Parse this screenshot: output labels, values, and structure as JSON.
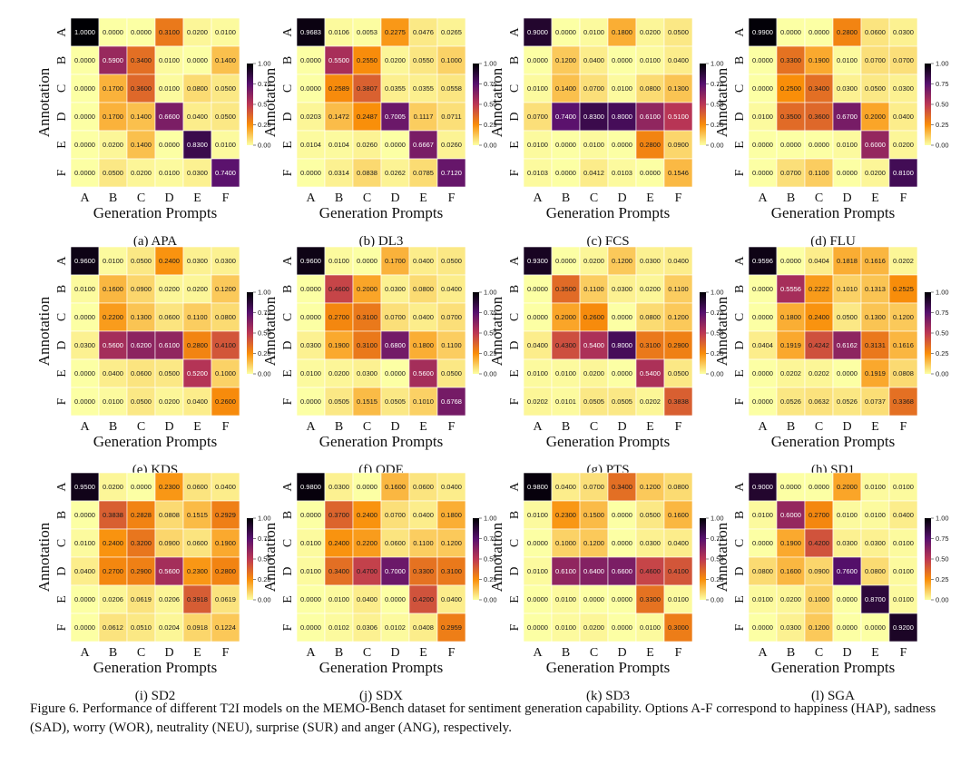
{
  "chart_data": [
    {
      "type": "heatmap",
      "subcaption": "(a) APA",
      "xlabel": "Generation Prompts",
      "ylabel": "Annotation",
      "categories": [
        "A",
        "B",
        "C",
        "D",
        "E",
        "F"
      ],
      "values": [
        [
          "1.0000",
          "0.0000",
          "0.0000",
          "0.3100",
          "0.0200",
          "0.0100"
        ],
        [
          "0.0000",
          "0.5900",
          "0.3400",
          "0.0100",
          "0.0000",
          "0.1400"
        ],
        [
          "0.0000",
          "0.1700",
          "0.3600",
          "0.0100",
          "0.0800",
          "0.0500"
        ],
        [
          "0.0000",
          "0.1700",
          "0.1400",
          "0.6600",
          "0.0400",
          "0.0500"
        ],
        [
          "0.0000",
          "0.0200",
          "0.1400",
          "0.0000",
          "0.8300",
          "0.0100"
        ],
        [
          "0.0000",
          "0.0500",
          "0.0200",
          "0.0100",
          "0.0300",
          "0.7400"
        ]
      ],
      "colorbar": {
        "ticks": [
          "1.00",
          "0.75",
          "0.5",
          "0.25",
          "0.00"
        ],
        "range": [
          0,
          1
        ]
      }
    },
    {
      "type": "heatmap",
      "subcaption": "(b) DL3",
      "xlabel": "Generation Prompts",
      "ylabel": "Annotation",
      "categories": [
        "A",
        "B",
        "C",
        "D",
        "E",
        "F"
      ],
      "values": [
        [
          "0.9683",
          "0.0106",
          "0.0053",
          "0.2275",
          "0.0476",
          "0.0265"
        ],
        [
          "0.0000",
          "0.5500",
          "0.2550",
          "0.0200",
          "0.0550",
          "0.1000"
        ],
        [
          "0.0000",
          "0.2589",
          "0.3807",
          "0.0355",
          "0.0355",
          "0.0558"
        ],
        [
          "0.0203",
          "0.1472",
          "0.2487",
          "0.7005",
          "0.1117",
          "0.0711"
        ],
        [
          "0.0104",
          "0.0104",
          "0.0260",
          "0.0000",
          "0.6667",
          "0.0260"
        ],
        [
          "0.0000",
          "0.0314",
          "0.0838",
          "0.0262",
          "0.0785",
          "0.7120"
        ]
      ],
      "colorbar": {
        "ticks": [
          "1.00",
          "0.75",
          "0.50",
          "0.25",
          "0.00"
        ],
        "range": [
          0,
          1
        ]
      }
    },
    {
      "type": "heatmap",
      "subcaption": "(c) FCS",
      "xlabel": "Generation Prompts",
      "ylabel": "Annotation",
      "categories": [
        "A",
        "B",
        "C",
        "D",
        "E",
        "F"
      ],
      "values": [
        [
          "0.9000",
          "0.0000",
          "0.0100",
          "0.1800",
          "0.0200",
          "0.0500"
        ],
        [
          "0.0000",
          "0.1200",
          "0.0400",
          "0.0000",
          "0.0100",
          "0.0400"
        ],
        [
          "0.0100",
          "0.1400",
          "0.0700",
          "0.0100",
          "0.0800",
          "0.1300"
        ],
        [
          "0.0700",
          "0.7400",
          "0.8300",
          "0.8000",
          "0.6100",
          "0.5100"
        ],
        [
          "0.0100",
          "0.0000",
          "0.0100",
          "0.0000",
          "0.2800",
          "0.0900"
        ],
        [
          "0.0103",
          "0.0000",
          "0.0412",
          "0.0103",
          "0.0000",
          "0.1546"
        ]
      ],
      "colorbar": {
        "ticks": [
          "1.00",
          "0.75",
          "0.50",
          "0.25",
          "0.00"
        ],
        "range": [
          0,
          1
        ]
      }
    },
    {
      "type": "heatmap",
      "subcaption": "(d) FLU",
      "xlabel": "Generation Prompts",
      "ylabel": "Annotation",
      "categories": [
        "A",
        "B",
        "C",
        "D",
        "E",
        "F"
      ],
      "values": [
        [
          "0.9900",
          "0.0000",
          "0.0000",
          "0.2800",
          "0.0600",
          "0.0300"
        ],
        [
          "0.0000",
          "0.3300",
          "0.1900",
          "0.0100",
          "0.0700",
          "0.0700"
        ],
        [
          "0.0000",
          "0.2500",
          "0.3400",
          "0.0300",
          "0.0500",
          "0.0300"
        ],
        [
          "0.0100",
          "0.3500",
          "0.3600",
          "0.6700",
          "0.2000",
          "0.0400"
        ],
        [
          "0.0000",
          "0.0000",
          "0.0000",
          "0.0100",
          "0.6000",
          "0.0200"
        ],
        [
          "0.0000",
          "0.0700",
          "0.1100",
          "0.0000",
          "0.0200",
          "0.8100"
        ]
      ],
      "colorbar": {
        "ticks": [
          "1.00",
          "0.75",
          "0.50",
          "0.25",
          "0.00"
        ],
        "range": [
          0,
          1
        ]
      }
    },
    {
      "type": "heatmap",
      "subcaption": "(e) KDS",
      "xlabel": "Generation Prompts",
      "ylabel": "Annotation",
      "categories": [
        "A",
        "B",
        "C",
        "D",
        "E",
        "F"
      ],
      "values": [
        [
          "0.9600",
          "0.0100",
          "0.0500",
          "0.2400",
          "0.0300",
          "0.0300"
        ],
        [
          "0.0100",
          "0.1600",
          "0.0900",
          "0.0200",
          "0.0200",
          "0.1200"
        ],
        [
          "0.0000",
          "0.2200",
          "0.1300",
          "0.0600",
          "0.1100",
          "0.0800"
        ],
        [
          "0.0300",
          "0.5600",
          "0.6200",
          "0.6100",
          "0.2800",
          "0.4100"
        ],
        [
          "0.0000",
          "0.0400",
          "0.0600",
          "0.0500",
          "0.5200",
          "0.1000"
        ],
        [
          "0.0000",
          "0.0100",
          "0.0500",
          "0.0200",
          "0.0400",
          "0.2600"
        ]
      ],
      "colorbar": {
        "ticks": [
          "1.00",
          "0.75",
          "0.50",
          "0.25",
          "0.00"
        ],
        "range": [
          0,
          1
        ]
      }
    },
    {
      "type": "heatmap",
      "subcaption": "(f) ODE",
      "xlabel": "Generation Prompts",
      "ylabel": "Annotation",
      "categories": [
        "A",
        "B",
        "C",
        "D",
        "E",
        "F"
      ],
      "values": [
        [
          "0.9600",
          "0.0100",
          "0.0000",
          "0.1700",
          "0.0400",
          "0.0500"
        ],
        [
          "0.0000",
          "0.4600",
          "0.2000",
          "0.0300",
          "0.0800",
          "0.0400"
        ],
        [
          "0.0000",
          "0.2700",
          "0.3100",
          "0.0700",
          "0.0400",
          "0.0700"
        ],
        [
          "0.0300",
          "0.1900",
          "0.3100",
          "0.6800",
          "0.1800",
          "0.1100"
        ],
        [
          "0.0100",
          "0.0200",
          "0.0300",
          "0.0000",
          "0.5600",
          "0.0500"
        ],
        [
          "0.0000",
          "0.0505",
          "0.1515",
          "0.0505",
          "0.1010",
          "0.6768"
        ]
      ],
      "colorbar": {
        "ticks": [
          "1.00",
          "0.75",
          "0.50",
          "0.25",
          "0.00"
        ],
        "range": [
          0,
          1
        ]
      }
    },
    {
      "type": "heatmap",
      "subcaption": "(g) PTS",
      "xlabel": "Generation Prompts",
      "ylabel": "Annotation",
      "categories": [
        "A",
        "B",
        "C",
        "D",
        "E",
        "F"
      ],
      "values": [
        [
          "0.9300",
          "0.0000",
          "0.0200",
          "0.1200",
          "0.0300",
          "0.0400"
        ],
        [
          "0.0000",
          "0.3500",
          "0.1100",
          "0.0300",
          "0.0200",
          "0.1100"
        ],
        [
          "0.0000",
          "0.2000",
          "0.2600",
          "0.0000",
          "0.0800",
          "0.1200"
        ],
        [
          "0.0400",
          "0.4300",
          "0.5400",
          "0.8000",
          "0.3100",
          "0.2900"
        ],
        [
          "0.0100",
          "0.0100",
          "0.0200",
          "0.0000",
          "0.5400",
          "0.0500"
        ],
        [
          "0.0202",
          "0.0101",
          "0.0505",
          "0.0505",
          "0.0202",
          "0.3838"
        ]
      ],
      "colorbar": {
        "ticks": [
          "1.00",
          "0.75",
          "0.50",
          "0.25",
          "0.00"
        ],
        "range": [
          0,
          1
        ]
      }
    },
    {
      "type": "heatmap",
      "subcaption": "(h) SD1",
      "xlabel": "Generation Prompts",
      "ylabel": "Annotation",
      "categories": [
        "A",
        "B",
        "C",
        "D",
        "E",
        "F"
      ],
      "values": [
        [
          "0.9596",
          "0.0000",
          "0.0404",
          "0.1818",
          "0.1616",
          "0.0202"
        ],
        [
          "0.0000",
          "0.5556",
          "0.2222",
          "0.1010",
          "0.1313",
          "0.2525"
        ],
        [
          "0.0000",
          "0.1800",
          "0.2400",
          "0.0500",
          "0.1300",
          "0.1200"
        ],
        [
          "0.0404",
          "0.1919",
          "0.4242",
          "0.6162",
          "0.3131",
          "0.1616"
        ],
        [
          "0.0000",
          "0.0202",
          "0.0202",
          "0.0000",
          "0.1919",
          "0.0808"
        ],
        [
          "0.0000",
          "0.0526",
          "0.0632",
          "0.0526",
          "0.0737",
          "0.3368"
        ]
      ],
      "colorbar": {
        "ticks": [
          "1.00",
          "0.75",
          "0.50",
          "0.25",
          "0.00"
        ],
        "range": [
          0,
          1
        ]
      }
    },
    {
      "type": "heatmap",
      "subcaption": "(i) SD2",
      "xlabel": "Generation Prompts",
      "ylabel": "Annotation",
      "categories": [
        "A",
        "B",
        "C",
        "D",
        "E",
        "F"
      ],
      "values": [
        [
          "0.9500",
          "0.0200",
          "0.0000",
          "0.2300",
          "0.0600",
          "0.0400"
        ],
        [
          "0.0000",
          "0.3838",
          "0.2828",
          "0.0808",
          "0.1515",
          "0.2929"
        ],
        [
          "0.0100",
          "0.2400",
          "0.3200",
          "0.0900",
          "0.0600",
          "0.1900"
        ],
        [
          "0.0400",
          "0.2700",
          "0.2900",
          "0.5600",
          "0.2300",
          "0.2800"
        ],
        [
          "0.0000",
          "0.0206",
          "0.0619",
          "0.0206",
          "0.3918",
          "0.0619"
        ],
        [
          "0.0000",
          "0.0612",
          "0.0510",
          "0.0204",
          "0.0918",
          "0.1224"
        ]
      ],
      "colorbar": {
        "ticks": [
          "1.00",
          "0.75",
          "0.50",
          "0.25",
          "0.00"
        ],
        "range": [
          0,
          1
        ]
      }
    },
    {
      "type": "heatmap",
      "subcaption": "(j) SDX",
      "xlabel": "Generation Prompts",
      "ylabel": "Annotation",
      "categories": [
        "A",
        "B",
        "C",
        "D",
        "E",
        "F"
      ],
      "values": [
        [
          "0.9800",
          "0.0300",
          "0.0000",
          "0.1600",
          "0.0600",
          "0.0400"
        ],
        [
          "0.0000",
          "0.3700",
          "0.2400",
          "0.0700",
          "0.0400",
          "0.1800"
        ],
        [
          "0.0100",
          "0.2400",
          "0.2200",
          "0.0600",
          "0.1100",
          "0.1200"
        ],
        [
          "0.0100",
          "0.3400",
          "0.4700",
          "0.7000",
          "0.3300",
          "0.3100"
        ],
        [
          "0.0000",
          "0.0100",
          "0.0400",
          "0.0000",
          "0.4200",
          "0.0400"
        ],
        [
          "0.0000",
          "0.0102",
          "0.0306",
          "0.0102",
          "0.0408",
          "0.2959"
        ]
      ],
      "colorbar": {
        "ticks": [
          "1.00",
          "0.75",
          "0.50",
          "0.25",
          "0.00"
        ],
        "range": [
          0,
          1
        ]
      }
    },
    {
      "type": "heatmap",
      "subcaption": "(k) SD3",
      "xlabel": "Generation Prompts",
      "ylabel": "Annotation",
      "categories": [
        "A",
        "B",
        "C",
        "D",
        "E",
        "F"
      ],
      "values": [
        [
          "0.9800",
          "0.0400",
          "0.0700",
          "0.3400",
          "0.1200",
          "0.0800"
        ],
        [
          "0.0100",
          "0.2300",
          "0.1500",
          "0.0000",
          "0.0500",
          "0.1600"
        ],
        [
          "0.0000",
          "0.1000",
          "0.1200",
          "0.0000",
          "0.0300",
          "0.0400"
        ],
        [
          "0.0100",
          "0.6100",
          "0.6400",
          "0.6600",
          "0.4600",
          "0.4100"
        ],
        [
          "0.0000",
          "0.0100",
          "0.0000",
          "0.0000",
          "0.3300",
          "0.0100"
        ],
        [
          "0.0000",
          "0.0100",
          "0.0200",
          "0.0000",
          "0.0100",
          "0.3000"
        ]
      ],
      "colorbar": {
        "ticks": [
          "1.00",
          "0.75",
          "0.50",
          "0.25",
          "0.00"
        ],
        "range": [
          0,
          1
        ]
      }
    },
    {
      "type": "heatmap",
      "subcaption": "(l) SGA",
      "xlabel": "Generation Prompts",
      "ylabel": "Annotation",
      "categories": [
        "A",
        "B",
        "C",
        "D",
        "E",
        "F"
      ],
      "values": [
        [
          "0.9000",
          "0.0000",
          "0.0000",
          "0.2000",
          "0.0100",
          "0.0100"
        ],
        [
          "0.0100",
          "0.6000",
          "0.2700",
          "0.0100",
          "0.0100",
          "0.0400"
        ],
        [
          "0.0000",
          "0.1900",
          "0.4200",
          "0.0300",
          "0.0300",
          "0.0100"
        ],
        [
          "0.0800",
          "0.1600",
          "0.0900",
          "0.7600",
          "0.0800",
          "0.0100"
        ],
        [
          "0.0100",
          "0.0200",
          "0.1000",
          "0.0000",
          "0.8700",
          "0.0100"
        ],
        [
          "0.0000",
          "0.0300",
          "0.1200",
          "0.0000",
          "0.0000",
          "0.9200"
        ]
      ],
      "colorbar": {
        "ticks": [
          "1.00",
          "0.75",
          "0.50",
          "0.25",
          "0.00"
        ],
        "range": [
          0,
          1
        ]
      }
    }
  ],
  "colormap": [
    "#fcffa4",
    "#f98e09",
    "#bc3754",
    "#57106e",
    "#000004"
  ],
  "caption": "Figure 6. Performance of different T2I models on the MEMO-Bench dataset for sentiment generation capability. Options A-F correspond to happiness (HAP), sadness (SAD), worry (WOR), neutrality (NEU), surprise (SUR) and anger (ANG), respectively."
}
